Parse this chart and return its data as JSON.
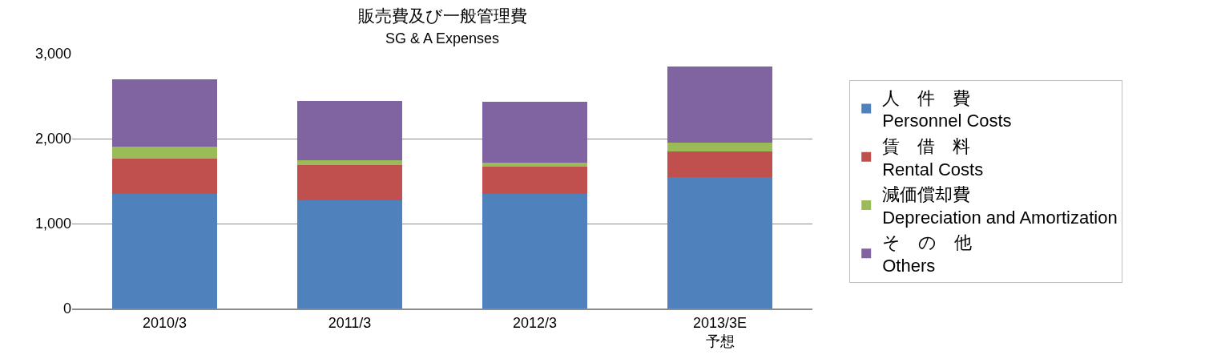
{
  "chart_data": {
    "type": "bar",
    "stacked": true,
    "title": "販売費及び一般管理費",
    "subtitle": "SG & A Expenses",
    "categories": [
      "2010/3",
      "2011/3",
      "2012/3",
      "2013/3E\n予想"
    ],
    "series": [
      {
        "name": "人　件　費\nPersonnel Costs",
        "color": "#4f81bd",
        "values": [
          1350,
          1270,
          1350,
          1550
        ]
      },
      {
        "name": "賃　借　料\nRental Costs",
        "color": "#c0504d",
        "values": [
          410,
          420,
          320,
          300
        ]
      },
      {
        "name": "減価償却費\nDepreciation and Amortization",
        "color": "#9bbb59",
        "values": [
          150,
          60,
          50,
          100
        ]
      },
      {
        "name": "そ　の　他\nOthers",
        "color": "#8064a2",
        "values": [
          790,
          690,
          710,
          900
        ]
      }
    ],
    "ylim": [
      0,
      3000
    ],
    "yticks": [
      {
        "value": 0,
        "label": "0"
      },
      {
        "value": 1000,
        "label": "1,000"
      },
      {
        "value": 2000,
        "label": "2,000"
      },
      {
        "value": 3000,
        "label": "3,000"
      }
    ],
    "grid": "y",
    "legend": "right"
  }
}
